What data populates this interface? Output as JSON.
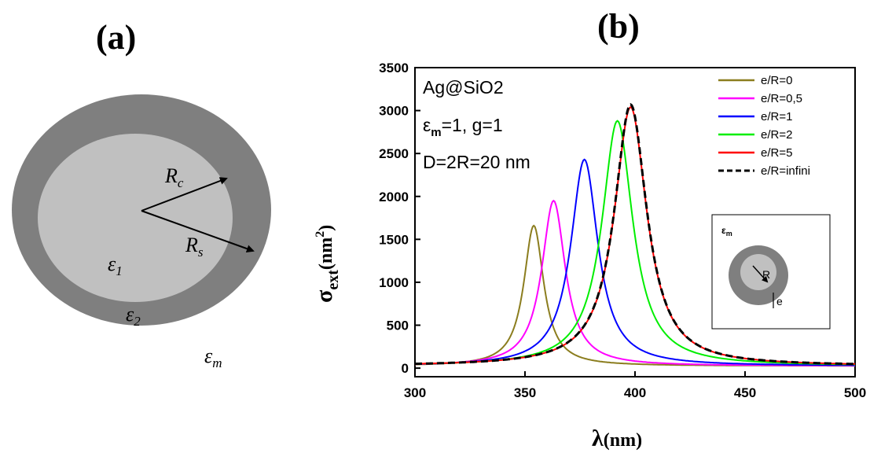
{
  "panel_a": {
    "label": "(a)",
    "r_core": "R",
    "r_core_sub": "c",
    "r_shell": "R",
    "r_shell_sub": "s",
    "eps_core": "ε",
    "eps_core_sub": "1",
    "eps_shell": "ε",
    "eps_shell_sub": "2",
    "eps_medium": "ε",
    "eps_medium_sub": "m",
    "colors": {
      "shell": "#7f7f7f",
      "core": "#c0c0c0"
    }
  },
  "panel_b": {
    "label": "(b)",
    "annotations": {
      "line1": "Ag@SiO2",
      "line2_sym": "ε",
      "line2_sub": "m",
      "line2_rest": "=1, g=1",
      "line3": "D=2R=20 nm"
    },
    "inset": {
      "eps_sym": "ε",
      "eps_sub": "m",
      "r_label": "R",
      "e_label": "e"
    }
  },
  "chart_data": {
    "type": "line",
    "xlabel_sym": "λ",
    "xlabel_unit": "(nm)",
    "ylabel_sym": "σ",
    "ylabel_sub": "ext",
    "ylabel_unit": "(nm",
    "ylabel_sup": "2",
    "ylabel_close": ")",
    "xlim": [
      300,
      500
    ],
    "ylim": [
      -100,
      3500
    ],
    "xticks": [
      "300",
      "350",
      "400",
      "450",
      "500"
    ],
    "yticks": [
      "0",
      "500",
      "1000",
      "1500",
      "2000",
      "2500",
      "3000",
      "3500"
    ],
    "legend_position": "top-right",
    "series": [
      {
        "name": "e/R=0",
        "color": "#8b7d1e",
        "dashed": false,
        "peak_x": 354,
        "peak_y": 1660,
        "width": 5.5
      },
      {
        "name": "e/R=0,5",
        "color": "#ff00ff",
        "dashed": false,
        "peak_x": 363,
        "peak_y": 1950,
        "width": 6.5
      },
      {
        "name": "e/R=1",
        "color": "#0000ff",
        "dashed": false,
        "peak_x": 377,
        "peak_y": 2430,
        "width": 7.5
      },
      {
        "name": "e/R=2",
        "color": "#00ee00",
        "dashed": false,
        "peak_x": 392,
        "peak_y": 2880,
        "width": 8.5
      },
      {
        "name": "e/R=5",
        "color": "#ff0000",
        "dashed": false,
        "peak_x": 398,
        "peak_y": 3040,
        "width": 9.0
      },
      {
        "name": "e/R=infini",
        "color": "#000000",
        "dashed": true,
        "peak_x": 398,
        "peak_y": 3070,
        "width": 9.0
      }
    ],
    "baseline": 25
  }
}
